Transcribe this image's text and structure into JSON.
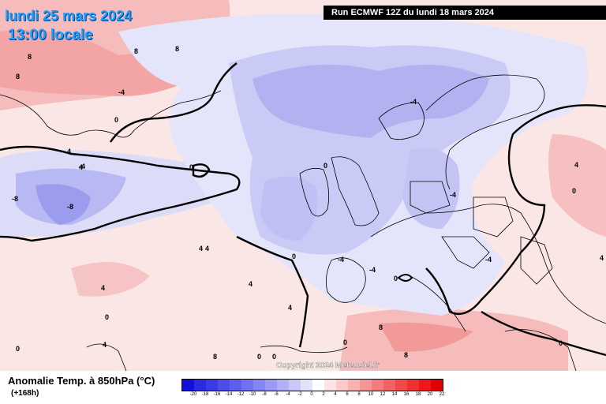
{
  "header": {
    "date": "lundi 25 mars 2024",
    "time": "13:00 locale",
    "run": "Run ECMWF 12Z du lundi 18 mars 2024"
  },
  "footer": {
    "variable": "Anomalie Temp. à 850hPa (°C)",
    "step": "(+168h)",
    "copyright": "Copyright 2024 Meteociel.fr"
  },
  "legend": {
    "ticks": [
      "-20",
      "-18",
      "-16",
      "-14",
      "-12",
      "-10",
      "-8",
      "-6",
      "-4",
      "-2",
      "0",
      "2",
      "4",
      "6",
      "8",
      "10",
      "12",
      "14",
      "16",
      "18",
      "20",
      "22"
    ],
    "colors": [
      "#1010d8",
      "#2a2ae0",
      "#3a3ae6",
      "#4c4cea",
      "#5e5eee",
      "#7070f0",
      "#8484f2",
      "#9a9af4",
      "#b0b0f6",
      "#c8c8f8",
      "#e2e2fa",
      "#ffffff",
      "#fde4e4",
      "#fbcaca",
      "#f9b0b0",
      "#f79696",
      "#f57c7c",
      "#f36262",
      "#f14848",
      "#ef3030",
      "#ed1818",
      "#e00000"
    ]
  },
  "contour_labels": [
    "8",
    "8",
    "8",
    "8",
    "-4",
    "0",
    "4",
    "4",
    "-4",
    "0",
    "-8",
    "-8",
    "-4",
    "0",
    "0",
    "-4",
    "-4",
    "0",
    "-4",
    "4",
    "4",
    "0",
    "4",
    "4",
    "0",
    "0",
    "0",
    "8",
    "8",
    "0",
    "4",
    "-4",
    "4",
    "4",
    "8",
    "4",
    "0",
    "0"
  ]
}
